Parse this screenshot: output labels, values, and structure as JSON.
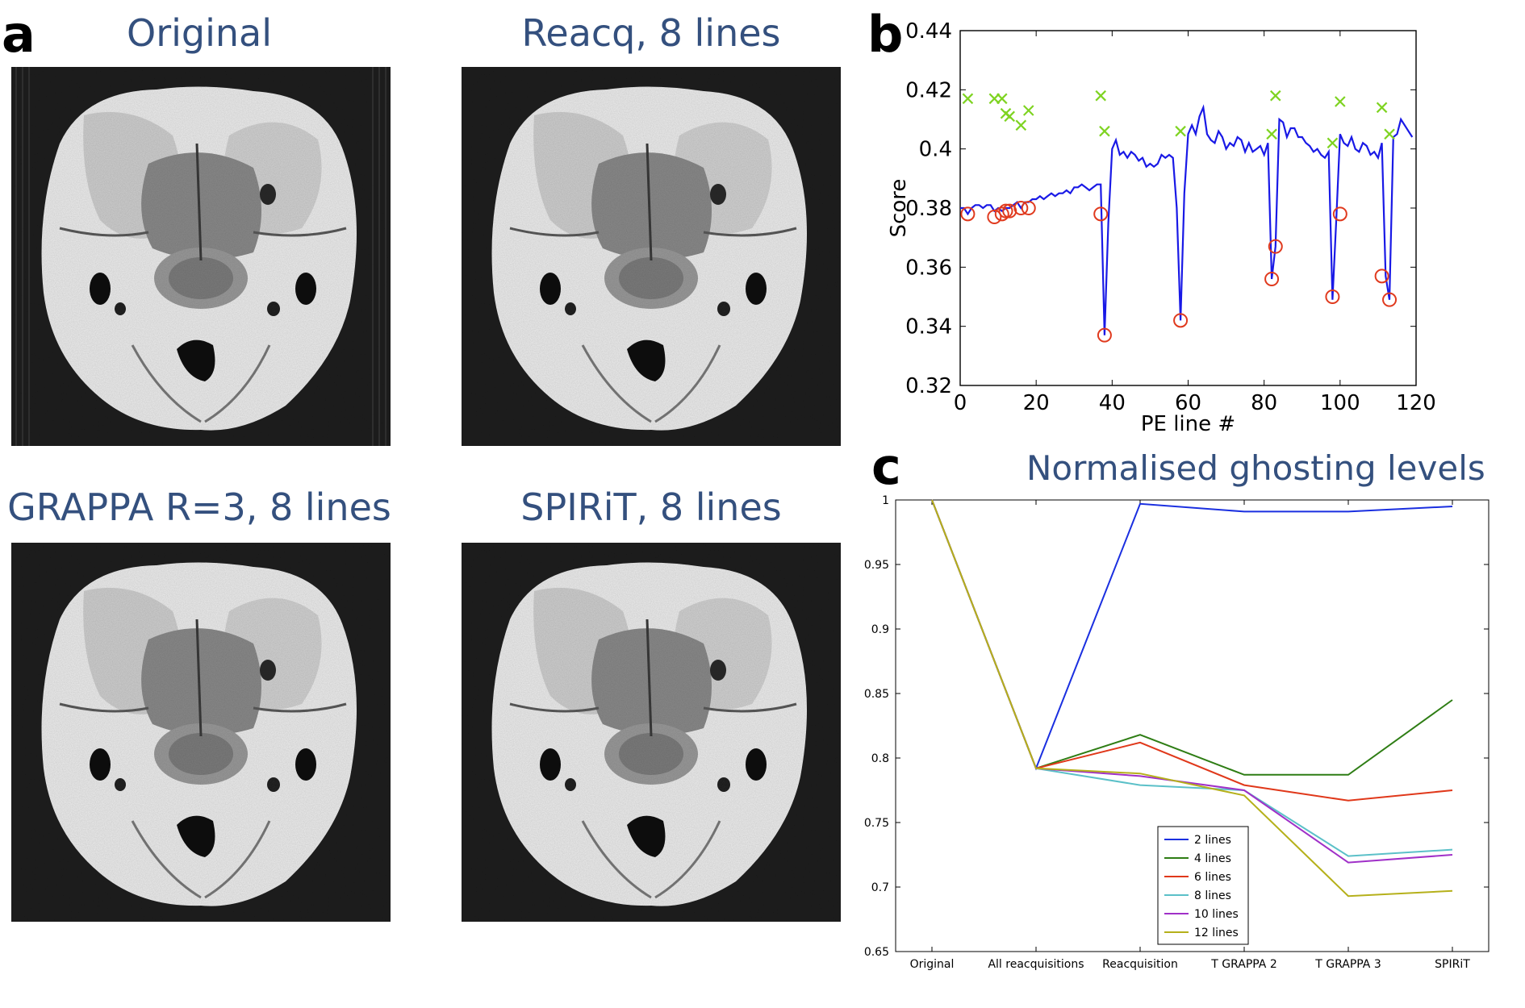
{
  "panel_letters": {
    "a": "a",
    "b": "b",
    "c": "c"
  },
  "images": [
    {
      "title": "Original"
    },
    {
      "title": "Reacq, 8 lines"
    },
    {
      "title": "GRAPPA R=3, 8 lines"
    },
    {
      "title": "SPIRiT, 8 lines"
    }
  ],
  "colors": {
    "title": "#34507e",
    "b_line": "#1919e6",
    "b_circle": "#e03a1e",
    "b_cross": "#7ed321"
  },
  "chart_data": [
    {
      "type": "line",
      "panel": "b",
      "title": "",
      "xlabel": "PE line #",
      "ylabel": "Score",
      "xlim": [
        0,
        120
      ],
      "ylim": [
        0.32,
        0.44
      ],
      "xticks": [
        0,
        20,
        40,
        60,
        80,
        100,
        120
      ],
      "yticks": [
        0.32,
        0.34,
        0.36,
        0.38,
        0.4,
        0.42,
        0.44
      ],
      "ytick_labels": [
        "0.32",
        "0.34",
        "0.36",
        "0.38",
        "0.4",
        "0.42",
        "0.44"
      ],
      "series": [
        {
          "name": "score",
          "x": [
            0,
            1,
            2,
            3,
            4,
            5,
            6,
            7,
            8,
            9,
            10,
            11,
            12,
            13,
            14,
            15,
            16,
            17,
            18,
            19,
            20,
            21,
            22,
            23,
            24,
            25,
            26,
            27,
            28,
            29,
            30,
            31,
            32,
            33,
            34,
            35,
            36,
            37,
            38,
            39,
            40,
            41,
            42,
            43,
            44,
            45,
            46,
            47,
            48,
            49,
            50,
            51,
            52,
            53,
            54,
            55,
            56,
            57,
            58,
            59,
            60,
            61,
            62,
            63,
            64,
            65,
            66,
            67,
            68,
            69,
            70,
            71,
            72,
            73,
            74,
            75,
            76,
            77,
            78,
            79,
            80,
            81,
            82,
            83,
            84,
            85,
            86,
            87,
            88,
            89,
            90,
            91,
            92,
            93,
            94,
            95,
            96,
            97,
            98,
            99,
            100,
            101,
            102,
            103,
            104,
            105,
            106,
            107,
            108,
            109,
            110,
            111,
            112,
            113,
            114,
            115,
            116,
            117,
            118,
            119
          ],
          "y": [
            0.38,
            0.38,
            0.378,
            0.38,
            0.381,
            0.381,
            0.38,
            0.381,
            0.381,
            0.379,
            0.38,
            0.379,
            0.38,
            0.38,
            0.381,
            0.382,
            0.38,
            0.382,
            0.382,
            0.383,
            0.383,
            0.384,
            0.383,
            0.384,
            0.385,
            0.384,
            0.385,
            0.385,
            0.386,
            0.385,
            0.387,
            0.387,
            0.388,
            0.387,
            0.386,
            0.387,
            0.388,
            0.388,
            0.337,
            0.375,
            0.4,
            0.403,
            0.398,
            0.399,
            0.397,
            0.399,
            0.398,
            0.396,
            0.397,
            0.394,
            0.395,
            0.394,
            0.395,
            0.398,
            0.397,
            0.398,
            0.397,
            0.38,
            0.342,
            0.385,
            0.405,
            0.408,
            0.405,
            0.411,
            0.414,
            0.405,
            0.403,
            0.402,
            0.406,
            0.404,
            0.4,
            0.402,
            0.401,
            0.404,
            0.403,
            0.399,
            0.402,
            0.399,
            0.4,
            0.401,
            0.398,
            0.402,
            0.356,
            0.367,
            0.41,
            0.409,
            0.404,
            0.407,
            0.407,
            0.404,
            0.404,
            0.402,
            0.401,
            0.399,
            0.4,
            0.398,
            0.397,
            0.399,
            0.349,
            0.376,
            0.405,
            0.402,
            0.401,
            0.404,
            0.4,
            0.399,
            0.402,
            0.401,
            0.398,
            0.399,
            0.397,
            0.402,
            0.357,
            0.349,
            0.404,
            0.405,
            0.41,
            0.408,
            0.406,
            0.404
          ]
        },
        {
          "name": "circles",
          "marker": "o",
          "x": [
            2,
            9,
            11,
            12,
            13,
            16,
            18,
            37,
            38,
            58,
            82,
            83,
            98,
            100,
            111,
            113
          ],
          "y": [
            0.378,
            0.377,
            0.378,
            0.379,
            0.379,
            0.38,
            0.38,
            0.378,
            0.337,
            0.342,
            0.356,
            0.367,
            0.35,
            0.378,
            0.357,
            0.349
          ]
        },
        {
          "name": "crosses",
          "marker": "x",
          "x": [
            2,
            9,
            11,
            12,
            13,
            16,
            18,
            37,
            38,
            58,
            82,
            83,
            98,
            100,
            111,
            113
          ],
          "y": [
            0.417,
            0.417,
            0.417,
            0.412,
            0.411,
            0.408,
            0.413,
            0.418,
            0.406,
            0.406,
            0.405,
            0.418,
            0.402,
            0.416,
            0.414,
            0.405
          ]
        }
      ]
    },
    {
      "type": "line",
      "panel": "c",
      "title": "Normalised ghosting levels",
      "xlabel": "",
      "ylabel": "",
      "categories": [
        "Original",
        "All reacquisitions",
        "Reacquisition",
        "T GRAPPA 2",
        "T GRAPPA 3",
        "SPIRiT"
      ],
      "ylim": [
        0.65,
        1
      ],
      "yticks": [
        0.65,
        0.7,
        0.75,
        0.8,
        0.85,
        0.9,
        0.95,
        1
      ],
      "ytick_labels": [
        "0.65",
        "0.7",
        "0.75",
        "0.8",
        "0.85",
        "0.9",
        "0.95",
        "1"
      ],
      "legend_position": "bottom-left",
      "series": [
        {
          "name": "2 lines",
          "color": "#1a2fe0",
          "values": [
            1,
            0.792,
            0.997,
            0.991,
            0.991,
            0.995
          ]
        },
        {
          "name": "4 lines",
          "color": "#2e7d14",
          "values": [
            1,
            0.792,
            0.818,
            0.787,
            0.787,
            0.845
          ]
        },
        {
          "name": "6 lines",
          "color": "#e0381a",
          "values": [
            1,
            0.792,
            0.812,
            0.779,
            0.767,
            0.775
          ]
        },
        {
          "name": "8 lines",
          "color": "#5bc0c8",
          "values": [
            1,
            0.792,
            0.779,
            0.775,
            0.724,
            0.729
          ]
        },
        {
          "name": "10 lines",
          "color": "#a030c8",
          "values": [
            1,
            0.792,
            0.786,
            0.775,
            0.719,
            0.725
          ]
        },
        {
          "name": "12 lines",
          "color": "#b5b01a",
          "values": [
            1,
            0.792,
            0.788,
            0.771,
            0.693,
            0.697
          ]
        }
      ]
    }
  ]
}
